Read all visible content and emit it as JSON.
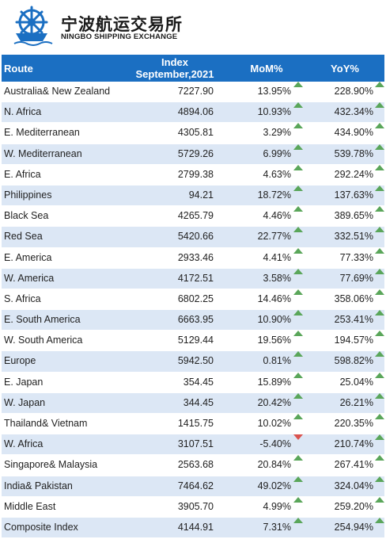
{
  "brand": {
    "name_cn": "宁波航运交易所",
    "name_en": "NINGBO SHIPPING EXCHANGE",
    "logo_icon": "ship-wheel-logo-icon"
  },
  "table": {
    "headers": {
      "route": "Route",
      "index_line1": "Index",
      "index_line2": "September,2021",
      "mom": "MoM%",
      "yoy": "YoY%"
    },
    "colors": {
      "header_bg": "#1b6fc2",
      "stripe": "#dce7f5",
      "up": "#5aa65a",
      "down": "#d9534f"
    },
    "rows": [
      {
        "route": "Australia& New Zealand",
        "index": "7227.90",
        "mom": "13.95%",
        "mom_dir": "up",
        "yoy": "228.90%",
        "yoy_dir": "up"
      },
      {
        "route": "N. Africa",
        "index": "4894.06",
        "mom": "10.93%",
        "mom_dir": "up",
        "yoy": "432.34%",
        "yoy_dir": "up"
      },
      {
        "route": "E. Mediterranean",
        "index": "4305.81",
        "mom": "3.29%",
        "mom_dir": "up",
        "yoy": "434.90%",
        "yoy_dir": "up"
      },
      {
        "route": "W. Mediterranean",
        "index": "5729.26",
        "mom": "6.99%",
        "mom_dir": "up",
        "yoy": "539.78%",
        "yoy_dir": "up"
      },
      {
        "route": "E. Africa",
        "index": "2799.38",
        "mom": "4.63%",
        "mom_dir": "up",
        "yoy": "292.24%",
        "yoy_dir": "up"
      },
      {
        "route": "Philippines",
        "index": "94.21",
        "mom": "18.72%",
        "mom_dir": "up",
        "yoy": "137.63%",
        "yoy_dir": "up"
      },
      {
        "route": "Black Sea",
        "index": "4265.79",
        "mom": "4.46%",
        "mom_dir": "up",
        "yoy": "389.65%",
        "yoy_dir": "up"
      },
      {
        "route": "Red Sea",
        "index": "5420.66",
        "mom": "22.77%",
        "mom_dir": "up",
        "yoy": "332.51%",
        "yoy_dir": "up"
      },
      {
        "route": "E. America",
        "index": "2933.46",
        "mom": "4.41%",
        "mom_dir": "up",
        "yoy": "77.33%",
        "yoy_dir": "up"
      },
      {
        "route": "W. America",
        "index": "4172.51",
        "mom": "3.58%",
        "mom_dir": "up",
        "yoy": "77.69%",
        "yoy_dir": "up"
      },
      {
        "route": "S. Africa",
        "index": "6802.25",
        "mom": "14.46%",
        "mom_dir": "up",
        "yoy": "358.06%",
        "yoy_dir": "up"
      },
      {
        "route": "E. South America",
        "index": "6663.95",
        "mom": "10.90%",
        "mom_dir": "up",
        "yoy": "253.41%",
        "yoy_dir": "up"
      },
      {
        "route": "W. South America",
        "index": "5129.44",
        "mom": "19.56%",
        "mom_dir": "up",
        "yoy": "194.57%",
        "yoy_dir": "up"
      },
      {
        "route": "Europe",
        "index": "5942.50",
        "mom": "0.81%",
        "mom_dir": "up",
        "yoy": "598.82%",
        "yoy_dir": "up"
      },
      {
        "route": "E. Japan",
        "index": "354.45",
        "mom": "15.89%",
        "mom_dir": "up",
        "yoy": "25.04%",
        "yoy_dir": "up"
      },
      {
        "route": "W. Japan",
        "index": "344.45",
        "mom": "20.42%",
        "mom_dir": "up",
        "yoy": "26.21%",
        "yoy_dir": "up"
      },
      {
        "route": "Thailand& Vietnam",
        "index": "1415.75",
        "mom": "10.02%",
        "mom_dir": "up",
        "yoy": "220.35%",
        "yoy_dir": "up"
      },
      {
        "route": "W. Africa",
        "index": "3107.51",
        "mom": "-5.40%",
        "mom_dir": "down",
        "yoy": "210.74%",
        "yoy_dir": "up"
      },
      {
        "route": "Singapore& Malaysia",
        "index": "2563.68",
        "mom": "20.84%",
        "mom_dir": "up",
        "yoy": "267.41%",
        "yoy_dir": "up"
      },
      {
        "route": "India& Pakistan",
        "index": "7464.62",
        "mom": "49.02%",
        "mom_dir": "up",
        "yoy": "324.04%",
        "yoy_dir": "up"
      },
      {
        "route": "Middle East",
        "index": "3905.70",
        "mom": "4.99%",
        "mom_dir": "up",
        "yoy": "259.20%",
        "yoy_dir": "up"
      },
      {
        "route": "Composite Index",
        "index": "4144.91",
        "mom": "7.31%",
        "mom_dir": "up",
        "yoy": "254.94%",
        "yoy_dir": "up"
      }
    ]
  }
}
